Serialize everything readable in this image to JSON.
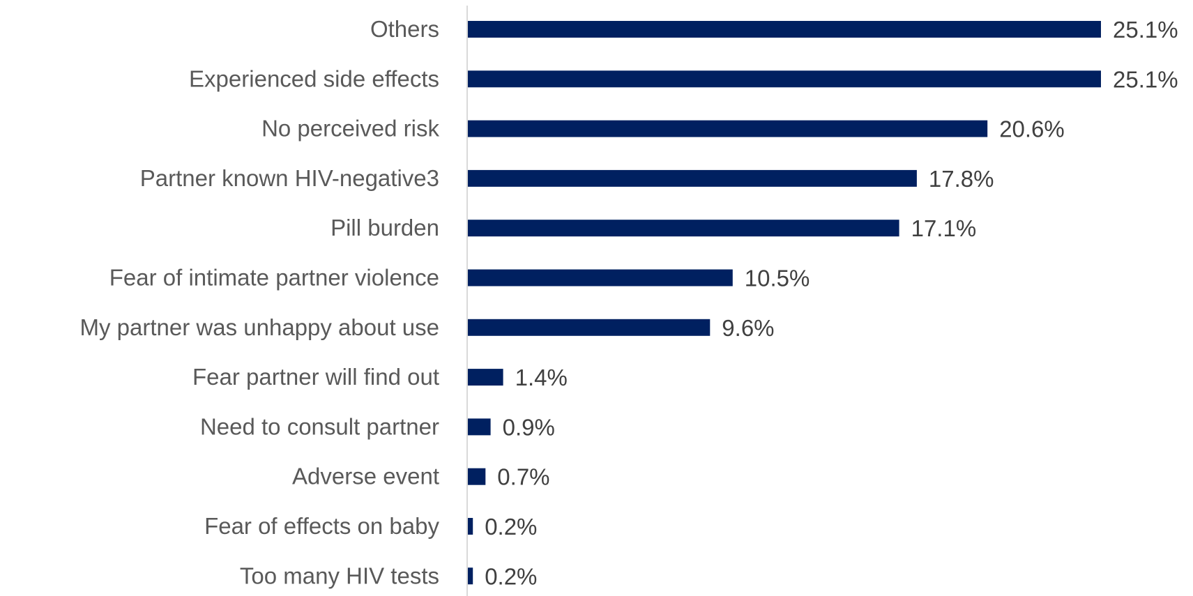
{
  "chart_data": {
    "type": "bar",
    "orientation": "horizontal",
    "categories": [
      "Others",
      "Experienced side effects",
      "No perceived risk",
      "Partner known HIV-negative3",
      "Pill burden",
      "Fear of  intimate partner violence",
      "My partner was unhappy about use",
      "Fear partner will find out",
      "Need to consult partner",
      "Adverse event",
      "Fear of effects on baby",
      "Too many HIV tests"
    ],
    "values": [
      25.1,
      25.1,
      20.6,
      17.8,
      17.1,
      10.5,
      9.6,
      1.4,
      0.9,
      0.7,
      0.2,
      0.2
    ],
    "data_labels": [
      "25.1%",
      "25.1%",
      "20.6%",
      "17.8%",
      "17.1%",
      "10.5%",
      "9.6%",
      "1.4%",
      "0.9%",
      "0.7%",
      "0.2%",
      "0.2%"
    ],
    "title": "",
    "xlabel": "",
    "ylabel": "",
    "xlim": [
      0,
      25.1
    ],
    "grid": false,
    "legend": "none",
    "bar_color": "#002060",
    "axis_color": "#d9d9d9"
  }
}
